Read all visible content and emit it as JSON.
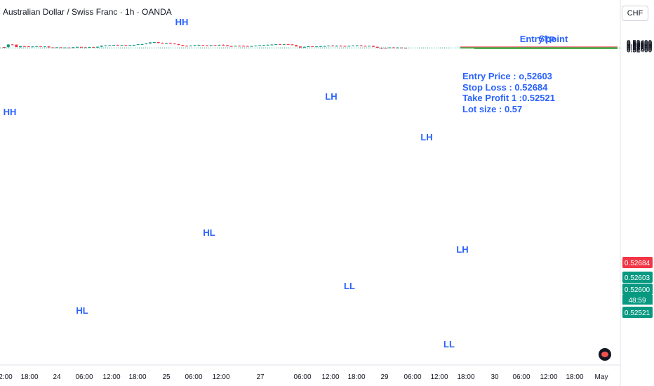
{
  "header": {
    "title": "Australian Dollar / Swiss Franc · 1h · OANDA",
    "currency": "CHF"
  },
  "colors": {
    "up": "#089981",
    "down": "#f23645",
    "label": "#2962ff",
    "sl_line": "#f23645",
    "entry_line": "#4caf50",
    "tp_line": "#4caf50"
  },
  "trade_info": {
    "entry": "Entry Price : o,52603",
    "stop_loss": "Stop Loss : 0.52684",
    "take_profit": "Take Profit 1 :0.52521",
    "lot_size": "Lot size : 0.57"
  },
  "chart_data": {
    "type": "candlestick",
    "title": "Australian Dollar / Swiss Franc · 1h · OANDA",
    "ylim": [
      0.5235,
      0.5345
    ],
    "y_ticks": [
      "0.53400",
      "0.53300",
      "0.53200",
      "0.53100",
      "0.53000",
      "0.52900",
      "0.52800",
      "0.52700",
      "0.52600",
      "0.52500",
      "0.52400"
    ],
    "x_ticks": [
      "2:00",
      "18:00",
      "24",
      "06:00",
      "12:00",
      "18:00",
      "25",
      "06:00",
      "12:00",
      "27",
      "06:00",
      "12:00",
      "18:00",
      "29",
      "06:00",
      "12:00",
      "18:00",
      "30",
      "06:00",
      "12:00",
      "18:00",
      "May"
    ],
    "current_price": "0.52600",
    "countdown": "48:59",
    "price_tags": [
      {
        "value": 0.52684,
        "text": "0.52684",
        "color": "#f23645"
      },
      {
        "value": 0.52603,
        "text": "0.52603",
        "color": "#089981"
      },
      {
        "value": 0.526,
        "text": "0.52600",
        "color": "#089981"
      },
      {
        "value": 0.52521,
        "text": "0.52521",
        "color": "#089981"
      }
    ],
    "levels": [
      {
        "name": "SL",
        "value": 0.52684,
        "label": "SL",
        "color": "#f23645"
      },
      {
        "name": "Entry",
        "value": 0.52603,
        "label": "Entry point",
        "color": "#4caf50"
      },
      {
        "name": "TP",
        "value": 0.52521,
        "label": "TP",
        "color": "#4caf50"
      }
    ],
    "swing_labels": [
      {
        "text": "HH",
        "price": 0.53205
      },
      {
        "text": "HL",
        "price": 0.52555
      },
      {
        "text": "HH",
        "price": 0.5352
      },
      {
        "text": "HL",
        "price": 0.52775
      },
      {
        "text": "LH",
        "price": 0.53225
      },
      {
        "text": "LL",
        "price": 0.5259
      },
      {
        "text": "LH",
        "price": 0.53115
      },
      {
        "text": "LH",
        "price": 0.5272
      },
      {
        "text": "LL",
        "price": 0.524
      }
    ],
    "candles": [
      [
        0.5272,
        0.5274,
        0.5267,
        0.527
      ],
      [
        0.527,
        0.531,
        0.5266,
        0.5307
      ],
      [
        0.5307,
        0.5311,
        0.5297,
        0.5305
      ],
      [
        0.5305,
        0.5306,
        0.527,
        0.5272
      ],
      [
        0.5272,
        0.5287,
        0.526,
        0.5284
      ],
      [
        0.5284,
        0.5288,
        0.5276,
        0.5281
      ],
      [
        0.5281,
        0.5285,
        0.5274,
        0.5276
      ],
      [
        0.5276,
        0.5282,
        0.5271,
        0.5279
      ],
      [
        0.5279,
        0.5286,
        0.5275,
        0.5284
      ],
      [
        0.5284,
        0.5287,
        0.5277,
        0.5278
      ],
      [
        0.5278,
        0.5282,
        0.5272,
        0.528
      ],
      [
        0.528,
        0.5281,
        0.5265,
        0.5267
      ],
      [
        0.5267,
        0.527,
        0.5258,
        0.526
      ],
      [
        0.526,
        0.527,
        0.5258,
        0.5268
      ],
      [
        0.5268,
        0.527,
        0.5258,
        0.5262
      ],
      [
        0.5262,
        0.5268,
        0.5257,
        0.5265
      ],
      [
        0.5265,
        0.5266,
        0.5255,
        0.5257
      ],
      [
        0.5257,
        0.5271,
        0.5255,
        0.5269
      ],
      [
        0.5269,
        0.5277,
        0.5266,
        0.5274
      ],
      [
        0.5274,
        0.5277,
        0.5266,
        0.5268
      ],
      [
        0.5268,
        0.5272,
        0.5263,
        0.5265
      ],
      [
        0.5265,
        0.5274,
        0.5262,
        0.5271
      ],
      [
        0.5271,
        0.5276,
        0.5262,
        0.5265
      ],
      [
        0.5265,
        0.5278,
        0.5263,
        0.5276
      ],
      [
        0.5276,
        0.5293,
        0.5273,
        0.529
      ],
      [
        0.529,
        0.5296,
        0.5285,
        0.5293
      ],
      [
        0.5293,
        0.5298,
        0.5288,
        0.5296
      ],
      [
        0.5296,
        0.5302,
        0.5292,
        0.53
      ],
      [
        0.53,
        0.5304,
        0.5294,
        0.5298
      ],
      [
        0.5298,
        0.5302,
        0.5295,
        0.5299
      ],
      [
        0.5299,
        0.5303,
        0.5293,
        0.5295
      ],
      [
        0.5295,
        0.53,
        0.529,
        0.5298
      ],
      [
        0.5298,
        0.5304,
        0.5296,
        0.5301
      ],
      [
        0.5301,
        0.5313,
        0.5299,
        0.531
      ],
      [
        0.531,
        0.5316,
        0.5303,
        0.5312
      ],
      [
        0.5312,
        0.5325,
        0.5309,
        0.5322
      ],
      [
        0.5322,
        0.5339,
        0.5317,
        0.5336
      ],
      [
        0.5336,
        0.5342,
        0.5325,
        0.534
      ],
      [
        0.534,
        0.5341,
        0.5324,
        0.5328
      ],
      [
        0.5328,
        0.5334,
        0.5318,
        0.532
      ],
      [
        0.532,
        0.533,
        0.5318,
        0.5327
      ],
      [
        0.5327,
        0.5334,
        0.5317,
        0.532
      ],
      [
        0.532,
        0.5323,
        0.531,
        0.5312
      ],
      [
        0.5312,
        0.5315,
        0.5298,
        0.53
      ],
      [
        0.53,
        0.5302,
        0.5285,
        0.5289
      ],
      [
        0.5289,
        0.5294,
        0.5282,
        0.5284
      ],
      [
        0.5284,
        0.5295,
        0.5282,
        0.5292
      ],
      [
        0.5292,
        0.53,
        0.5289,
        0.5298
      ],
      [
        0.5298,
        0.5307,
        0.5294,
        0.53
      ],
      [
        0.53,
        0.5302,
        0.5291,
        0.5294
      ],
      [
        0.5294,
        0.53,
        0.5287,
        0.529
      ],
      [
        0.529,
        0.53,
        0.5286,
        0.5297
      ],
      [
        0.5297,
        0.5301,
        0.5293,
        0.5295
      ],
      [
        0.5295,
        0.5305,
        0.5291,
        0.5299
      ],
      [
        0.5299,
        0.531,
        0.5295,
        0.5297
      ],
      [
        0.5297,
        0.5299,
        0.5283,
        0.5285
      ],
      [
        0.5285,
        0.529,
        0.528,
        0.5284
      ],
      [
        0.5284,
        0.5291,
        0.5281,
        0.5289
      ],
      [
        0.5289,
        0.5294,
        0.5285,
        0.5288
      ],
      [
        0.5288,
        0.5295,
        0.5282,
        0.5286
      ],
      [
        0.5286,
        0.5289,
        0.5276,
        0.5278
      ],
      [
        0.5278,
        0.5287,
        0.5276,
        0.5285
      ],
      [
        0.5285,
        0.5294,
        0.5283,
        0.5291
      ],
      [
        0.5291,
        0.5299,
        0.5288,
        0.5297
      ],
      [
        0.5297,
        0.5302,
        0.5293,
        0.5298
      ],
      [
        0.5298,
        0.5305,
        0.5295,
        0.5303
      ],
      [
        0.5303,
        0.5309,
        0.53,
        0.5306
      ],
      [
        0.5306,
        0.5312,
        0.5304,
        0.531
      ],
      [
        0.531,
        0.5316,
        0.5305,
        0.5307
      ],
      [
        0.5307,
        0.5312,
        0.53,
        0.531
      ],
      [
        0.531,
        0.5315,
        0.5306,
        0.5308
      ],
      [
        0.5308,
        0.5312,
        0.5296,
        0.5298
      ],
      [
        0.5298,
        0.5302,
        0.5278,
        0.528
      ],
      [
        0.528,
        0.5284,
        0.5262,
        0.5266
      ],
      [
        0.5266,
        0.5278,
        0.5262,
        0.5275
      ],
      [
        0.5275,
        0.5285,
        0.5273,
        0.5282
      ],
      [
        0.5282,
        0.5284,
        0.5275,
        0.5277
      ],
      [
        0.5277,
        0.5282,
        0.5273,
        0.528
      ],
      [
        0.528,
        0.5286,
        0.5277,
        0.5283
      ],
      [
        0.5283,
        0.529,
        0.5279,
        0.5286
      ],
      [
        0.5286,
        0.5294,
        0.5283,
        0.5291
      ],
      [
        0.5291,
        0.5299,
        0.5287,
        0.5288
      ],
      [
        0.5288,
        0.5295,
        0.5285,
        0.5289
      ],
      [
        0.5289,
        0.5296,
        0.5285,
        0.5287
      ],
      [
        0.5287,
        0.529,
        0.5281,
        0.5283
      ],
      [
        0.5283,
        0.5292,
        0.5281,
        0.5288
      ],
      [
        0.5288,
        0.5295,
        0.5286,
        0.5293
      ],
      [
        0.5293,
        0.5299,
        0.5289,
        0.5294
      ],
      [
        0.5294,
        0.5301,
        0.5285,
        0.5288
      ],
      [
        0.5288,
        0.5292,
        0.5283,
        0.5285
      ],
      [
        0.5285,
        0.5291,
        0.5281,
        0.5289
      ],
      [
        0.5289,
        0.5291,
        0.5271,
        0.5275
      ],
      [
        0.5275,
        0.5278,
        0.526,
        0.5262
      ],
      [
        0.5262,
        0.5265,
        0.5245,
        0.526
      ],
      [
        0.526,
        0.5265,
        0.5256,
        0.5258
      ],
      [
        0.5258,
        0.5268,
        0.5256,
        0.5266
      ],
      [
        0.5266,
        0.527,
        0.526,
        0.5262
      ],
      [
        0.5262,
        0.5268,
        0.5258,
        0.5264
      ],
      [
        0.5264,
        0.5266,
        0.5259,
        0.5261
      ],
      [
        0.5261,
        0.5263,
        0.5258,
        0.526
      ]
    ]
  }
}
